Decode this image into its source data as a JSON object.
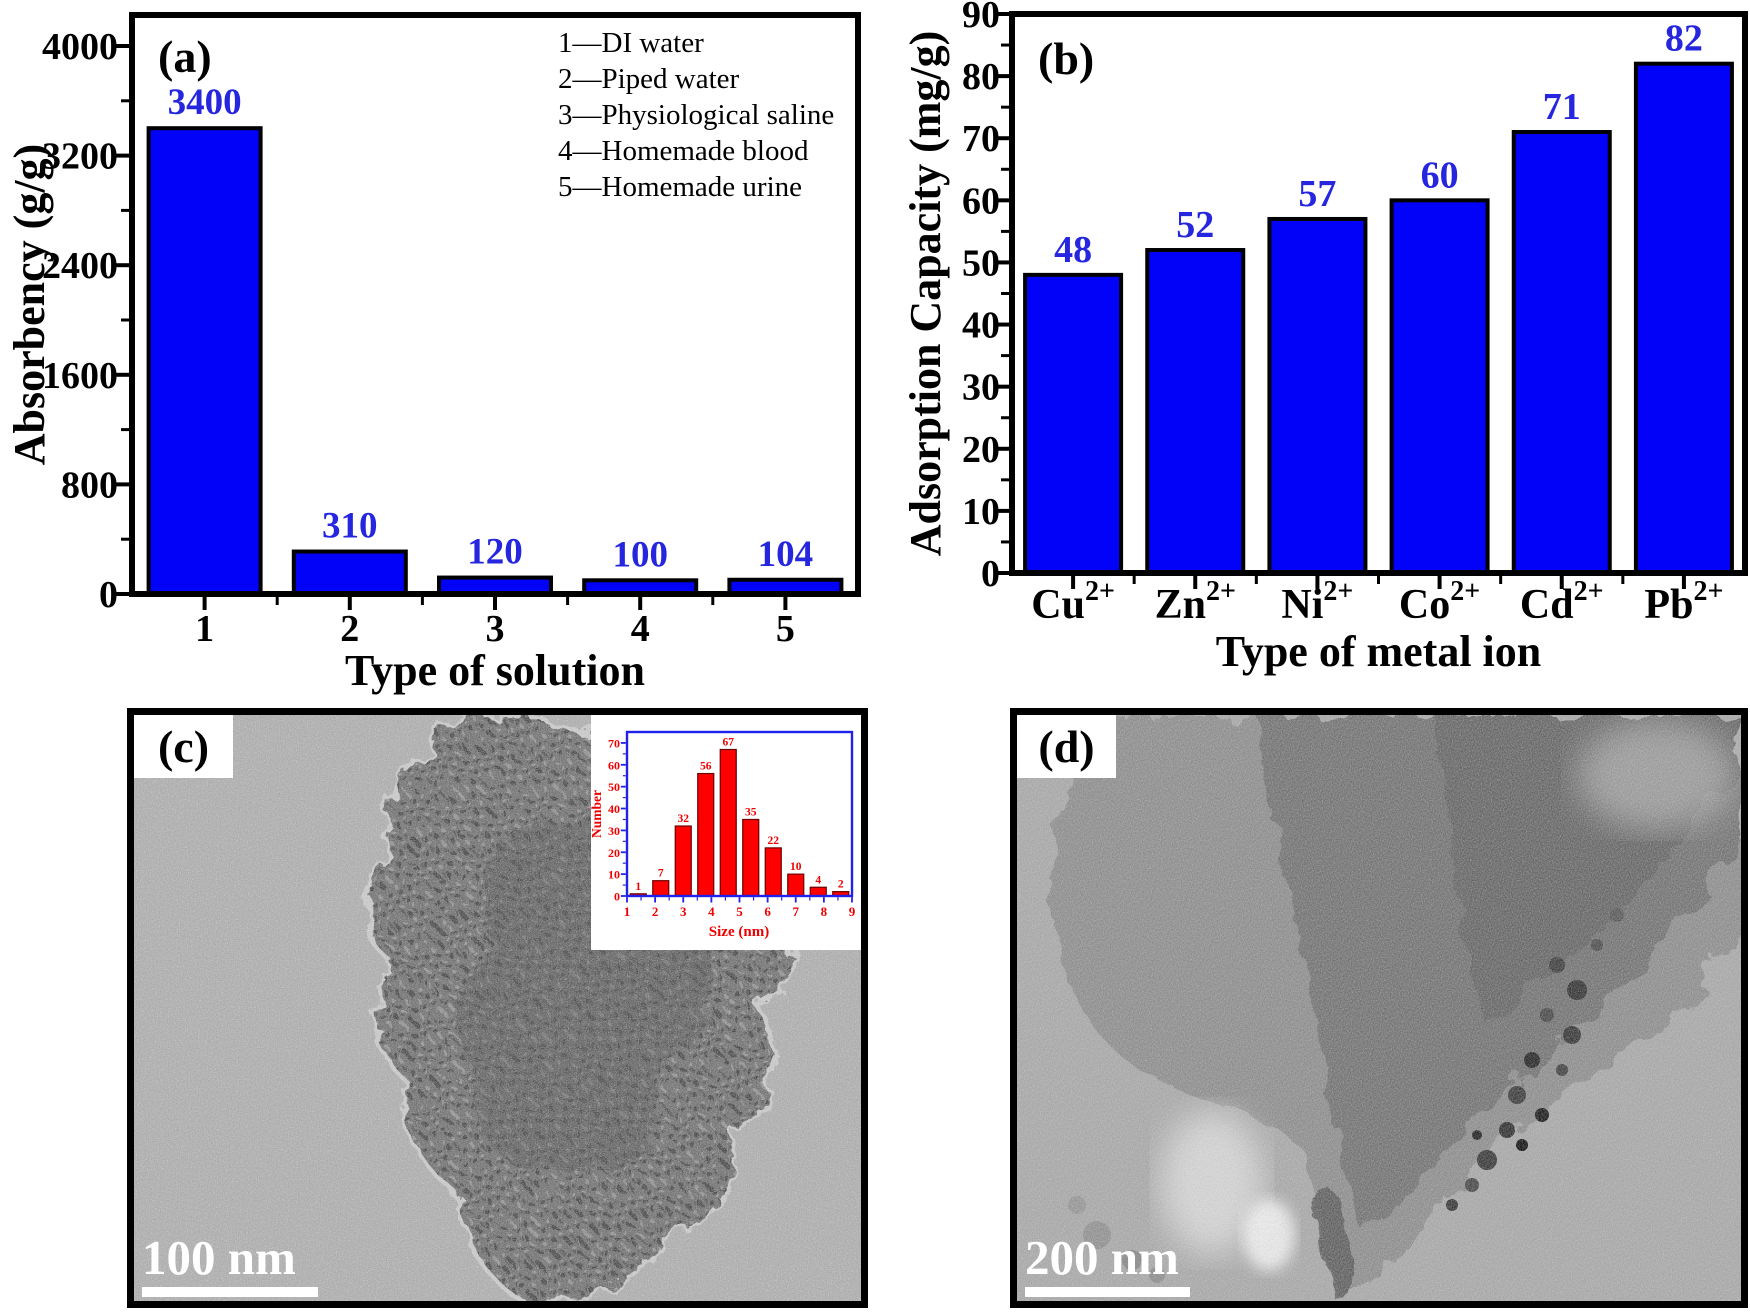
{
  "figure": {
    "panels": {
      "a": {
        "label": "(a)"
      },
      "b": {
        "label": "(b)"
      },
      "c": {
        "label": "(c)",
        "scale_text": "100 nm"
      },
      "d": {
        "label": "(d)",
        "scale_text": "200 nm"
      }
    }
  },
  "colors": {
    "bar_fill": "#0202F8",
    "bar_stroke": "#000000",
    "value_label": "#2626DF",
    "axis": "#000000",
    "inset_bar": "#FF0000",
    "inset_bar_stroke": "#6B0000",
    "inset_text": "#EF0000",
    "inset_axis": "#2121EC"
  },
  "chart_data": [
    {
      "id": "panel-a",
      "type": "bar",
      "panel_label": "(a)",
      "categories": [
        "1",
        "2",
        "3",
        "4",
        "5"
      ],
      "values": [
        3400,
        310,
        120,
        100,
        104
      ],
      "bar_labels": [
        "3400",
        "310",
        "120",
        "100",
        "104"
      ],
      "xlabel": "Type of solution",
      "ylabel": "Absorbency (g/g)",
      "ylim": [
        0,
        4200
      ],
      "yticks": [
        0,
        800,
        1600,
        2400,
        3200,
        4000
      ],
      "yminor_step": 400,
      "grid": false,
      "legend_position": "top-right",
      "legend": [
        "1—DI water",
        "2—Piped water",
        "3—Physiological saline",
        "4—Homemade blood",
        "5—Homemade urine"
      ]
    },
    {
      "id": "panel-b",
      "type": "bar",
      "panel_label": "(b)",
      "categories": [
        {
          "base": "Cu",
          "sup": "2+"
        },
        {
          "base": "Zn",
          "sup": "2+"
        },
        {
          "base": "Ni",
          "sup": "2+"
        },
        {
          "base": "Co",
          "sup": "2+"
        },
        {
          "base": "Cd",
          "sup": "2+"
        },
        {
          "base": "Pb",
          "sup": "2+"
        }
      ],
      "values": [
        48,
        52,
        57,
        60,
        71,
        82
      ],
      "bar_labels": [
        "48",
        "52",
        "57",
        "60",
        "71",
        "82"
      ],
      "xlabel": "Type of metal ion",
      "ylabel": "Adsorption Capacity (mg/g)",
      "ylim": [
        0,
        90
      ],
      "ytick_step": 10,
      "yminor_step": 5,
      "grid": false
    },
    {
      "id": "panel-c-inset",
      "type": "bar",
      "panel_label": "",
      "x": [
        1.4,
        2.2,
        3.0,
        3.8,
        4.6,
        5.4,
        6.2,
        7.0,
        7.8,
        8.6
      ],
      "values": [
        1,
        7,
        32,
        56,
        67,
        35,
        22,
        10,
        4,
        2
      ],
      "bar_labels": [
        "1",
        "7",
        "32",
        "56",
        "67",
        "35",
        "22",
        "10",
        "4",
        "2"
      ],
      "xlabel": "Size (nm)",
      "ylabel": "Number",
      "xlim": [
        1,
        9
      ],
      "xticks": [
        1,
        2,
        3,
        4,
        5,
        6,
        7,
        8,
        9
      ],
      "ylim": [
        0,
        75
      ],
      "ytick_step": 10,
      "yminor_step": 5,
      "grid": false
    }
  ]
}
